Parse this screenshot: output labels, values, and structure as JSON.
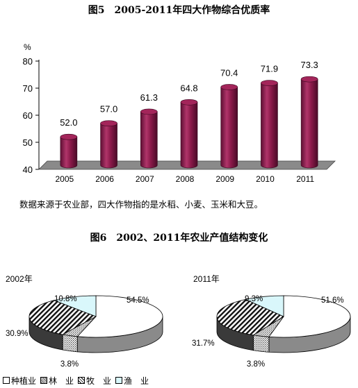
{
  "fig5": {
    "title": "图5　2005-2011年四大作物综合优质率",
    "note": "数据来源于农业部，四大作物指的是水稻、小麦、玉米和大豆。"
  },
  "fig6": {
    "title": "图6　2002、2011年农业产值结构变化"
  },
  "chart_data": [
    {
      "type": "bar",
      "categories": [
        "2005",
        "2006",
        "2007",
        "2008",
        "2009",
        "2010",
        "2011"
      ],
      "values": [
        52.0,
        57.0,
        61.3,
        64.8,
        70.4,
        71.9,
        73.3
      ],
      "value_labels": [
        "52.0",
        "57.0",
        "61.3",
        "64.8",
        "70.4",
        "71.9",
        "73.3"
      ],
      "ylabel": "%",
      "ylim": [
        40,
        80
      ],
      "yticks": [
        "40",
        "50",
        "60",
        "70",
        "80"
      ],
      "bar_color": "#8b1a4a",
      "floor_color": "#8a8a8a",
      "grid": false
    },
    {
      "type": "pie",
      "name": "2002年",
      "labels": [
        "种植业",
        "林　业",
        "牧　业",
        "渔　业"
      ],
      "values": [
        54.5,
        3.8,
        30.9,
        10.8
      ],
      "value_labels": [
        "54.5%",
        "3.8%",
        "30.9%",
        "10.8%"
      ]
    },
    {
      "type": "pie",
      "name": "2011年",
      "labels": [
        "种植业",
        "林　业",
        "牧　业",
        "渔　业"
      ],
      "values": [
        51.6,
        3.8,
        31.7,
        9.3
      ],
      "value_labels": [
        "51.6%",
        "3.8%",
        "31.7%",
        "9.3%"
      ]
    }
  ],
  "legend": [
    "种植业",
    "林　业",
    "牧　业",
    "渔　业"
  ]
}
